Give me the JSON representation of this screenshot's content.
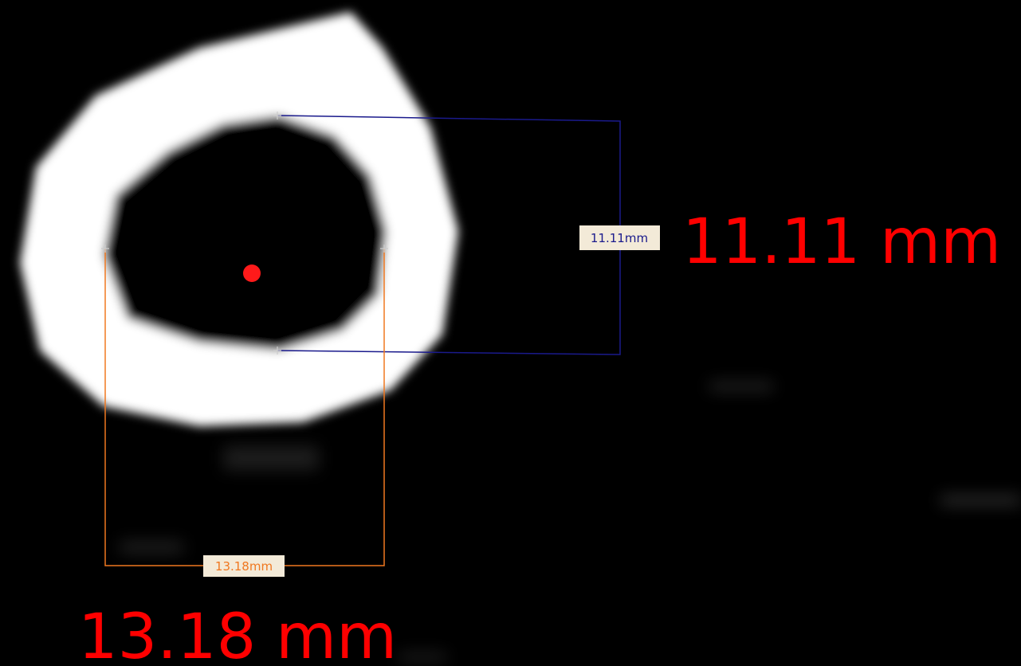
{
  "measurements": [
    {
      "label": "11.11mm",
      "caption": "11.11 mm"
    },
    {
      "label": "13.18mm",
      "caption": "13.18 mm"
    }
  ]
}
